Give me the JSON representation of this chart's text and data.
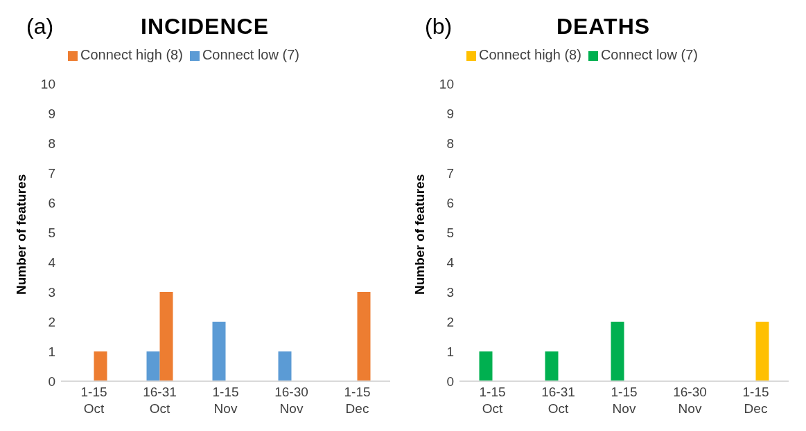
{
  "chart_data": [
    {
      "type": "bar",
      "title": "INCIDENCE",
      "annotations": [
        "(a)"
      ],
      "ylabel": "Number of features",
      "categories": [
        "1-15 Oct",
        "16-31 Oct",
        "1-15 Nov",
        "16-30 Nov",
        "1-15 Dec"
      ],
      "series": [
        {
          "name": "Connect low (7)",
          "color": "#5b9bd5",
          "values": [
            0,
            1,
            2,
            1,
            0
          ]
        },
        {
          "name": "Connect high (8)",
          "color": "#ed7d31",
          "values": [
            1,
            3,
            0,
            0,
            3
          ]
        }
      ],
      "ylim": [
        0,
        10
      ],
      "yticks": [
        0,
        1,
        2,
        3,
        4,
        5,
        6,
        7,
        8,
        9,
        10
      ],
      "grid": false,
      "legend": "top left"
    },
    {
      "type": "bar",
      "title": "DEATHS",
      "annotations": [
        "(b)"
      ],
      "ylabel": "Number of features",
      "categories": [
        "1-15 Oct",
        "16-31 Oct",
        "1-15 Nov",
        "16-30 Nov",
        "1-15 Dec"
      ],
      "series": [
        {
          "name": "Connect low (7)",
          "color": "#00b050",
          "values": [
            1,
            1,
            2,
            0,
            0
          ]
        },
        {
          "name": "Connect high (8)",
          "color": "#ffc000",
          "values": [
            0,
            0,
            0,
            0,
            2
          ]
        }
      ],
      "ylim": [
        0,
        10
      ],
      "yticks": [
        0,
        1,
        2,
        3,
        4,
        5,
        6,
        7,
        8,
        9,
        10
      ],
      "grid": false,
      "legend": "top left"
    }
  ]
}
